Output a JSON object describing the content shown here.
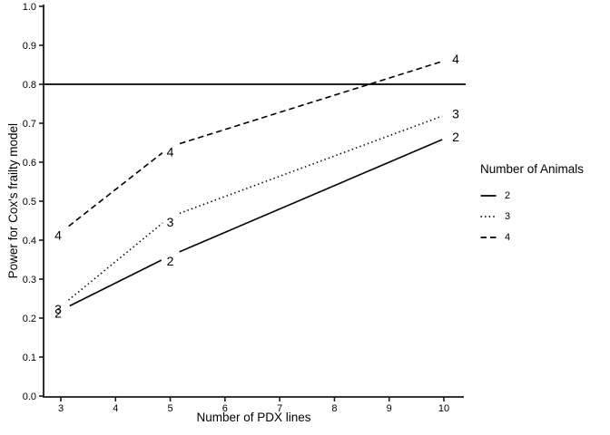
{
  "chart_data": {
    "type": "line",
    "x": [
      3,
      5,
      10
    ],
    "series": [
      {
        "name": "2",
        "linestyle": "solid",
        "values": [
          0.22,
          0.36,
          0.66
        ]
      },
      {
        "name": "3",
        "linestyle": "dotted",
        "values": [
          0.23,
          0.46,
          0.72
        ]
      },
      {
        "name": "4",
        "linestyle": "dashed",
        "values": [
          0.42,
          0.64,
          0.86
        ]
      }
    ],
    "reference_line_y": 0.8,
    "title": "",
    "xlabel": "Number of PDX lines",
    "ylabel": "Power for Cox's frailty model",
    "xlim": [
      3,
      10
    ],
    "ylim": [
      0.0,
      1.0
    ],
    "xticks": [
      "3",
      "4",
      "5",
      "6",
      "7",
      "8",
      "9",
      "10"
    ],
    "yticks": [
      "0.0",
      "0.1",
      "0.2",
      "0.3",
      "0.4",
      "0.5",
      "0.6",
      "0.7",
      "0.8",
      "0.9",
      "1.0"
    ],
    "grid": "off",
    "point_labels": true,
    "legend": {
      "position": "right",
      "title": "Number of Animals",
      "entries": [
        {
          "label": "2",
          "linestyle": "solid"
        },
        {
          "label": "3",
          "linestyle": "dotted"
        },
        {
          "label": "4",
          "linestyle": "dashed"
        }
      ]
    },
    "colors": {
      "line": "#000000",
      "axis": "#1a1a1a",
      "text": "#000000",
      "background": "#ffffff"
    }
  }
}
